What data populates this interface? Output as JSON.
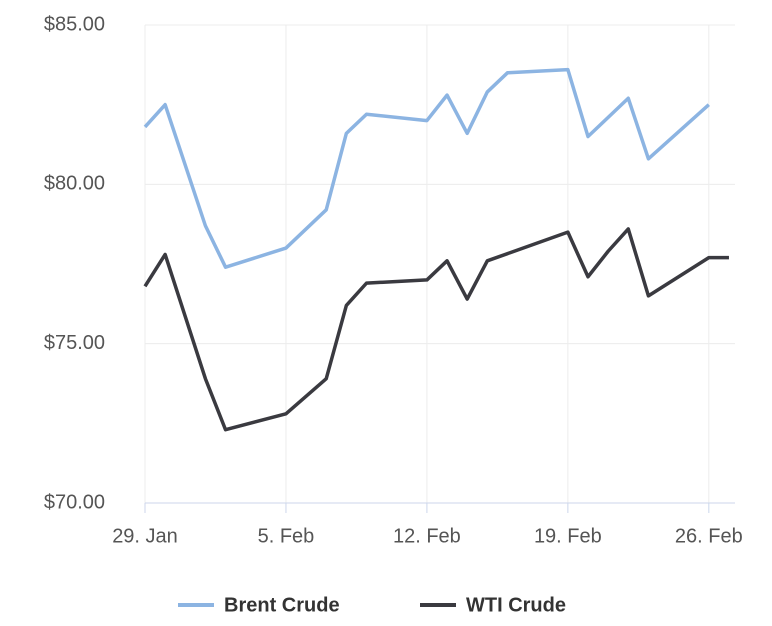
{
  "chart_data": {
    "type": "line",
    "series": [
      {
        "name": "Brent Crude",
        "color": "#8cb4e2",
        "x": [
          0,
          1,
          3,
          4,
          7,
          9,
          10,
          11,
          14,
          15,
          16,
          17,
          18,
          21,
          22,
          24,
          25,
          28
        ],
        "values": [
          81.8,
          82.5,
          78.7,
          77.4,
          78.0,
          79.2,
          81.6,
          82.2,
          82.0,
          82.8,
          81.6,
          82.9,
          83.5,
          83.6,
          81.5,
          82.7,
          80.8,
          82.5
        ]
      },
      {
        "name": "WTI Crude",
        "color": "#3a3a40",
        "x": [
          0,
          1,
          3,
          4,
          7,
          9,
          10,
          11,
          14,
          15,
          16,
          17,
          21,
          22,
          23,
          24,
          25,
          28,
          29
        ],
        "values": [
          76.8,
          77.8,
          73.9,
          72.3,
          72.8,
          73.9,
          76.2,
          76.9,
          77.0,
          77.6,
          76.4,
          77.6,
          78.5,
          77.1,
          77.9,
          78.6,
          76.5,
          77.7,
          77.7
        ]
      }
    ],
    "xlim": [
      0,
      29.3
    ],
    "xticks": [
      {
        "value": 0,
        "label": "29. Jan"
      },
      {
        "value": 7,
        "label": "5. Feb"
      },
      {
        "value": 14,
        "label": "12. Feb"
      },
      {
        "value": 21,
        "label": "19. Feb"
      },
      {
        "value": 28,
        "label": "26. Feb"
      }
    ],
    "ylim": [
      70,
      85
    ],
    "yticks": [
      {
        "value": 70,
        "label": "$70.00"
      },
      {
        "value": 75,
        "label": "$75.00"
      },
      {
        "value": 80,
        "label": "$80.00"
      },
      {
        "value": 85,
        "label": "$85.00"
      }
    ],
    "grid": true,
    "legend": "bottom"
  }
}
